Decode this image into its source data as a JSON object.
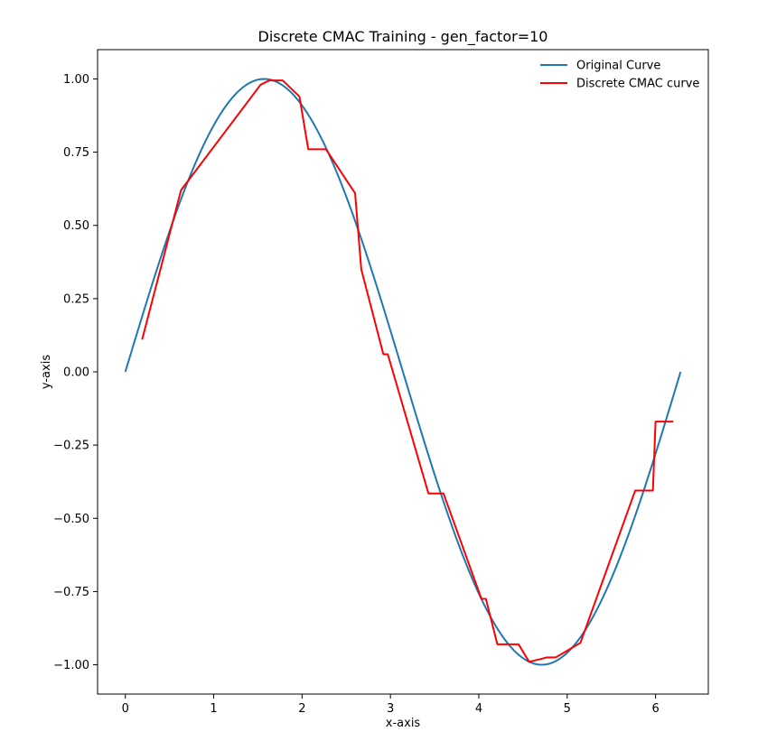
{
  "chart_data": {
    "type": "line",
    "title": "Discrete CMAC Training - gen_factor=10",
    "xlabel": "x-axis",
    "ylabel": "y-axis",
    "xlim": [
      -0.314,
      6.597
    ],
    "ylim": [
      -1.1,
      1.1
    ],
    "xticks": [
      0,
      1,
      2,
      3,
      4,
      5,
      6
    ],
    "xtick_labels": [
      "0",
      "1",
      "2",
      "3",
      "4",
      "5",
      "6"
    ],
    "yticks": [
      1.0,
      0.75,
      0.5,
      0.25,
      0.0,
      -0.25,
      -0.5,
      -0.75,
      -1.0
    ],
    "ytick_labels": [
      "1.00",
      "0.75",
      "0.50",
      "0.25",
      "0.00",
      "−0.25",
      "−0.50",
      "−0.75",
      "−1.00"
    ],
    "grid": false,
    "legend_position": "top-right",
    "series": [
      {
        "name": "Original Curve",
        "color": "#1f77b4",
        "function": "sin",
        "x_range": [
          0,
          6.2832
        ]
      },
      {
        "name": "Discrete CMAC curve",
        "color": "#ff0000",
        "x": [
          0.19,
          0.63,
          1.53,
          1.63,
          1.78,
          1.97,
          2.07,
          2.27,
          2.6,
          2.67,
          2.92,
          2.97,
          3.43,
          3.6,
          4.03,
          4.08,
          4.21,
          4.45,
          4.57,
          4.77,
          4.87,
          5.15,
          5.77,
          5.97,
          6.0,
          6.2
        ],
        "y": [
          0.11,
          0.62,
          0.98,
          0.995,
          0.995,
          0.94,
          0.76,
          0.76,
          0.61,
          0.35,
          0.06,
          0.06,
          -0.415,
          -0.415,
          -0.775,
          -0.775,
          -0.93,
          -0.93,
          -0.99,
          -0.975,
          -0.975,
          -0.925,
          -0.405,
          -0.405,
          -0.17,
          -0.17
        ]
      }
    ]
  }
}
